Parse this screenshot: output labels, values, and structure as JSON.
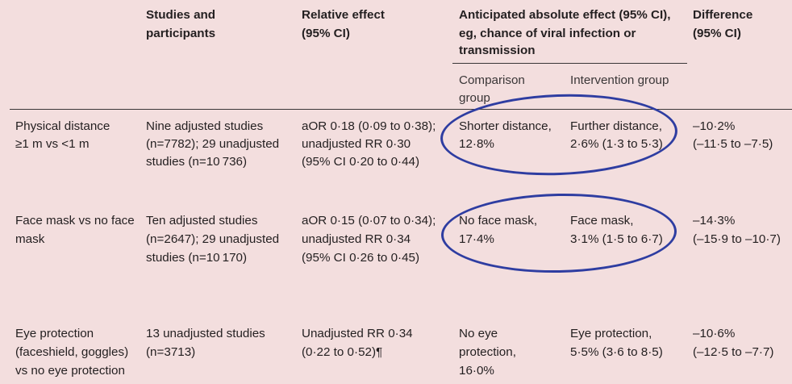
{
  "table": {
    "headers": {
      "studies": [
        "Studies and",
        "participants"
      ],
      "relative": [
        "Relative effect",
        "(95% CI)"
      ],
      "anticipated": [
        "Anticipated absolute effect (95% CI),",
        "eg, chance of viral infection or",
        "transmission"
      ],
      "difference": [
        "Difference",
        "(95% CI)"
      ],
      "comparison": [
        "Comparison",
        "group"
      ],
      "intervention": "Intervention group"
    },
    "rows": [
      {
        "outcome": [
          "Physical distance",
          "≥1 m vs <1 m"
        ],
        "studies": [
          "Nine adjusted studies",
          "(n=7782); 29 unadjusted",
          "studies (n=10 736)"
        ],
        "relative": [
          "aOR 0·18 (0·09 to 0·38);",
          "unadjusted RR 0·30",
          "(95% CI 0·20 to 0·44)"
        ],
        "comparison": [
          "Shorter distance,",
          "12·8%"
        ],
        "intervention": [
          "Further distance,",
          "2·6% (1·3 to 5·3)"
        ],
        "difference": [
          "–10·2%",
          "(–11·5 to –7·5)"
        ]
      },
      {
        "outcome": [
          "Face mask vs no face",
          "mask"
        ],
        "studies": [
          "Ten adjusted studies",
          "(n=2647); 29 unadjusted",
          "studies (n=10 170)"
        ],
        "relative": [
          "aOR 0·15 (0·07 to 0·34);",
          "unadjusted RR 0·34",
          "(95% CI 0·26 to 0·45)"
        ],
        "comparison": [
          "No face mask,",
          "17·4%"
        ],
        "intervention": [
          "Face mask,",
          "3·1% (1·5 to 6·7)"
        ],
        "difference": [
          "–14·3%",
          "(–15·9 to –10·7)"
        ]
      },
      {
        "outcome": [
          "Eye protection",
          "(faceshield, goggles)",
          "vs no eye protection"
        ],
        "studies": [
          "13 unadjusted studies",
          "(n=3713)"
        ],
        "relative": [
          "Unadjusted RR 0·34",
          "(0·22 to 0·52)¶"
        ],
        "comparison": [
          "No eye",
          "protection,",
          "16·0%"
        ],
        "intervention": [
          "Eye protection,",
          "5·5% (3·6 to 8·5)"
        ],
        "difference": [
          "–10·6%",
          "(–12·5 to –7·7)"
        ]
      }
    ]
  },
  "colors": {
    "background": "#f3dede",
    "annotation_oval": "#2e3da1",
    "text": "#231f20"
  }
}
